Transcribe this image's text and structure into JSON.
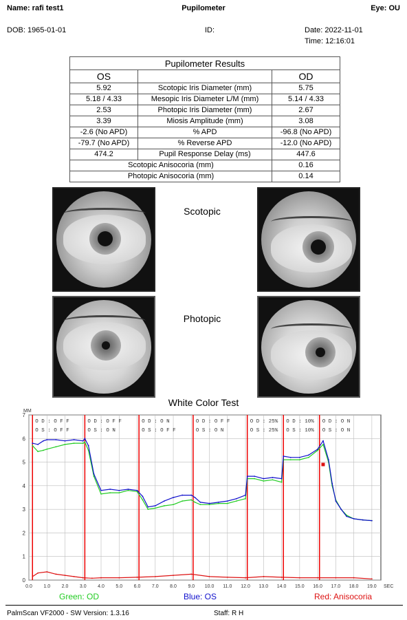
{
  "header": {
    "name": "Name: rafi  test1",
    "title": "Pupilometer",
    "eye": "Eye: OU",
    "dob": "DOB: 1965-01-01",
    "id": "ID:",
    "date": "Date: 2022-11-01",
    "time": "Time: 12:16:01"
  },
  "results": {
    "title": "Pupilometer Results",
    "col_os": "OS",
    "col_od": "OD",
    "rows": [
      {
        "os": "5.92",
        "label": "Scotopic Iris Diameter (mm)",
        "od": "5.75"
      },
      {
        "os": "5.18 / 4.33",
        "label": "Mesopic Iris Diameter L/M (mm)",
        "od": "5.14 / 4.33"
      },
      {
        "os": "2.53",
        "label": "Photopic Iris Diameter (mm)",
        "od": "2.67"
      },
      {
        "os": "3.39",
        "label": "Miosis Amplitude (mm)",
        "od": "3.08"
      },
      {
        "os": "-2.6 (No APD)",
        "label": "% APD",
        "od": "-96.8 (No APD)"
      },
      {
        "os": "-79.7 (No APD)",
        "label": "% Reverse APD",
        "od": "-12.0 (No APD)"
      },
      {
        "os": "474.2",
        "label": "Pupil Response Delay (ms)",
        "od": "447.6"
      }
    ],
    "aniso": [
      {
        "label": "Scotopic Anisocoria (mm)",
        "value": "0.16"
      },
      {
        "label": "Photopic Anisocoria (mm)",
        "value": "0.14"
      }
    ]
  },
  "images": {
    "scotopic_label": "Scotopic",
    "photopic_label": "Photopic"
  },
  "chart_data": {
    "type": "line",
    "title": "White Color Test",
    "ylabel": "MM",
    "xlabel": "SEC",
    "ylim": [
      0,
      7
    ],
    "xlim": [
      0,
      19.5
    ],
    "yticks": [
      "0",
      "1",
      "2",
      "3",
      "4",
      "5",
      "6",
      "7"
    ],
    "xticks": [
      "0.0",
      "1.0",
      "2.0",
      "3.0",
      "4.0",
      "5.0",
      "6.0",
      "7.0",
      "8.0",
      "9.0",
      "10.0",
      "11.0",
      "12.0",
      "13.0",
      "14.0",
      "15.0",
      "16.0",
      "17.0",
      "18.0",
      "19.0"
    ],
    "segment_boundaries": [
      0.2,
      3.1,
      6.1,
      9.1,
      12.1,
      14.1,
      16.1
    ],
    "segment_labels": [
      {
        "od": "O D :   O F F",
        "os": "O S :   O F F"
      },
      {
        "od": "O D :   O F F",
        "os": "O S :   O N"
      },
      {
        "od": "O D :   O N",
        "os": "O S :   O F F"
      },
      {
        "od": "O D :   O F F",
        "os": "O S :   O N"
      },
      {
        "od": "O D :   25%",
        "os": "O S :   25%"
      },
      {
        "od": "O D :   10%",
        "os": "O S :   10%"
      },
      {
        "od": "O D :   O N",
        "os": "O S :   O N"
      }
    ],
    "series": [
      {
        "name": "Green: OD",
        "color": "#22cc22",
        "x": [
          0.2,
          0.5,
          0.8,
          1.0,
          1.5,
          2.0,
          2.5,
          3.0,
          3.1,
          3.3,
          3.6,
          4.0,
          4.5,
          5.0,
          5.5,
          6.0,
          6.3,
          6.6,
          7.0,
          7.5,
          8.0,
          8.5,
          9.0,
          9.2,
          9.5,
          10.0,
          10.5,
          11.0,
          11.5,
          12.0,
          12.1,
          12.5,
          13.0,
          13.5,
          14.0,
          14.1,
          14.5,
          15.0,
          15.5,
          16.0,
          16.3,
          16.6,
          16.8,
          17.0,
          17.3,
          17.6,
          18.0,
          18.5,
          19.0
        ],
        "y": [
          5.7,
          5.45,
          5.5,
          5.55,
          5.65,
          5.75,
          5.8,
          5.8,
          5.85,
          5.5,
          4.4,
          3.65,
          3.7,
          3.7,
          3.8,
          3.75,
          3.4,
          3.0,
          3.05,
          3.15,
          3.2,
          3.35,
          3.4,
          3.3,
          3.2,
          3.2,
          3.25,
          3.25,
          3.35,
          3.45,
          4.3,
          4.3,
          4.2,
          4.25,
          4.15,
          5.1,
          5.1,
          5.1,
          5.2,
          5.5,
          5.75,
          5.0,
          4.0,
          3.4,
          3.0,
          2.75,
          2.6,
          2.55,
          2.52
        ]
      },
      {
        "name": "Blue: OS",
        "color": "#1010cc",
        "x": [
          0.2,
          0.5,
          0.8,
          1.0,
          1.5,
          2.0,
          2.5,
          3.0,
          3.1,
          3.3,
          3.6,
          4.0,
          4.5,
          5.0,
          5.5,
          6.0,
          6.3,
          6.6,
          7.0,
          7.5,
          8.0,
          8.5,
          9.0,
          9.2,
          9.5,
          10.0,
          10.5,
          11.0,
          11.5,
          12.0,
          12.1,
          12.5,
          13.0,
          13.5,
          14.0,
          14.1,
          14.5,
          15.0,
          15.5,
          16.0,
          16.3,
          16.6,
          16.8,
          17.0,
          17.3,
          17.6,
          18.0,
          18.5,
          19.0
        ],
        "y": [
          5.8,
          5.75,
          5.9,
          5.95,
          5.95,
          5.9,
          5.95,
          5.9,
          6.0,
          5.7,
          4.5,
          3.8,
          3.85,
          3.8,
          3.85,
          3.8,
          3.55,
          3.1,
          3.15,
          3.35,
          3.5,
          3.6,
          3.6,
          3.5,
          3.3,
          3.25,
          3.3,
          3.35,
          3.45,
          3.6,
          4.4,
          4.4,
          4.3,
          4.35,
          4.3,
          5.25,
          5.2,
          5.2,
          5.3,
          5.55,
          5.9,
          5.1,
          4.1,
          3.35,
          3.0,
          2.7,
          2.6,
          2.55,
          2.52
        ]
      },
      {
        "name": "Red: Anisocoria",
        "color": "#dd1111",
        "x": [
          0.2,
          0.5,
          1.0,
          1.5,
          2.0,
          2.5,
          3.0,
          3.5,
          4.0,
          5.0,
          6.0,
          7.0,
          8.0,
          9.0,
          10.0,
          11.0,
          12.0,
          13.0,
          14.0,
          15.0,
          16.0,
          17.0,
          18.0,
          19.0
        ],
        "y": [
          0.15,
          0.3,
          0.35,
          0.25,
          0.2,
          0.15,
          0.1,
          0.08,
          0.1,
          0.1,
          0.12,
          0.15,
          0.2,
          0.25,
          0.15,
          0.12,
          0.1,
          0.15,
          0.12,
          0.1,
          0.1,
          0.1,
          0.1,
          0.05
        ]
      }
    ],
    "marker": {
      "x": 16.3,
      "y": 4.9,
      "color": "#dd1111"
    }
  },
  "legend": {
    "green": "Green: OD",
    "blue": "Blue: OS",
    "red": "Red: Anisocoria"
  },
  "footer": {
    "version": "PalmScan VF2000 - SW Version: 1.3.16",
    "staff": "Staff: R H"
  }
}
